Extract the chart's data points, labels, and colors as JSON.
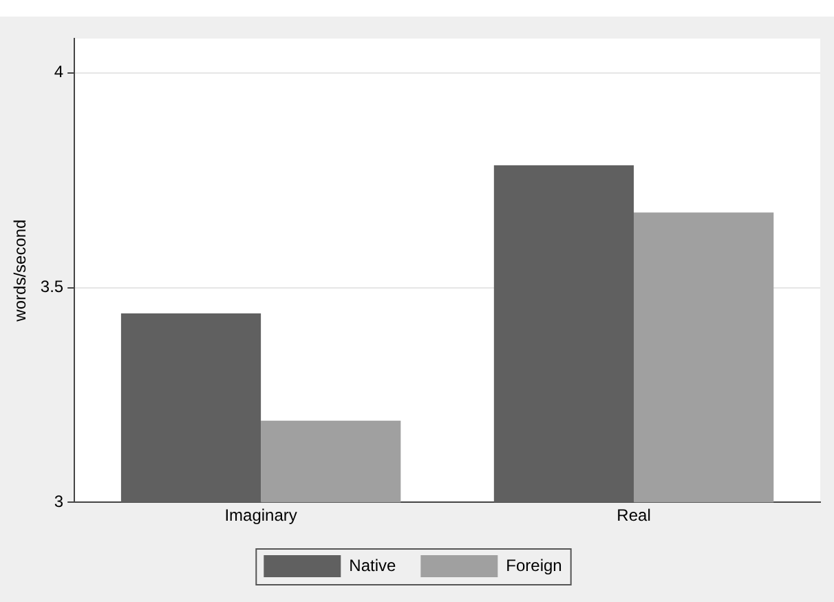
{
  "chart_data": {
    "type": "bar",
    "ylabel": "words/second",
    "categories": [
      "Imaginary",
      "Real"
    ],
    "series": [
      {
        "name": "Native",
        "color": "#606060",
        "values": [
          3.44,
          3.785
        ]
      },
      {
        "name": "Foreign",
        "color": "#a0a0a0",
        "values": [
          3.19,
          3.675
        ]
      }
    ],
    "ylim": [
      3,
      4.08
    ],
    "yticks": [
      3,
      3.5,
      4
    ],
    "grid": "y",
    "legend": "bottom"
  }
}
